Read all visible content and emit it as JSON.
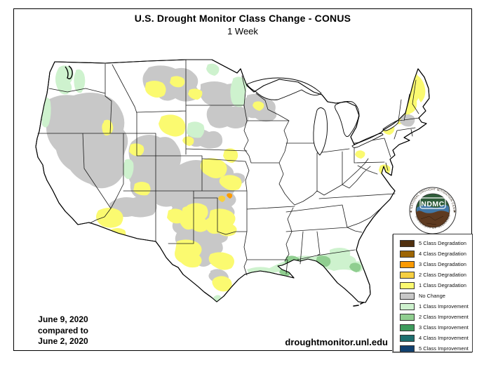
{
  "header": {
    "title": "U.S. Drought Monitor Class Change - CONUS",
    "subtitle": "1 Week"
  },
  "comparison": {
    "line1": "June 9, 2020",
    "line2": "compared to",
    "line3": "June 2, 2020"
  },
  "footer": {
    "url": "droughtmonitor.unl.edu"
  },
  "logo": {
    "acronym": "NDMC",
    "arc_top": "NATIONAL DROUGHT MITIGATION CENTER",
    "arc_bottom": "UNIVERSITY OF NEBRASKA",
    "star_left": "★",
    "star_right": "★"
  },
  "legend": {
    "items": [
      {
        "key": "deg5",
        "label": "5 Class Degradation",
        "color": "#50300F"
      },
      {
        "key": "deg4",
        "label": "4 Class Degradation",
        "color": "#9D6504"
      },
      {
        "key": "deg3",
        "label": "3 Class Degradation",
        "color": "#FB9A02"
      },
      {
        "key": "deg2",
        "label": "2 Class Degradation",
        "color": "#F6CF41"
      },
      {
        "key": "deg1",
        "label": "1 Class Degradation",
        "color": "#FBFA70"
      },
      {
        "key": "nochange",
        "label": "No Change",
        "color": "#C8C8C8"
      },
      {
        "key": "imp1",
        "label": "1 Class Improvement",
        "color": "#CEF2CE"
      },
      {
        "key": "imp2",
        "label": "2 Class Improvement",
        "color": "#90CE90"
      },
      {
        "key": "imp3",
        "label": "3 Class Improvement",
        "color": "#3E9B5D"
      },
      {
        "key": "imp4",
        "label": "4 Class Improvement",
        "color": "#1E6F6F"
      },
      {
        "key": "imp5",
        "label": "5 Class Improvement",
        "color": "#10406F"
      }
    ]
  }
}
